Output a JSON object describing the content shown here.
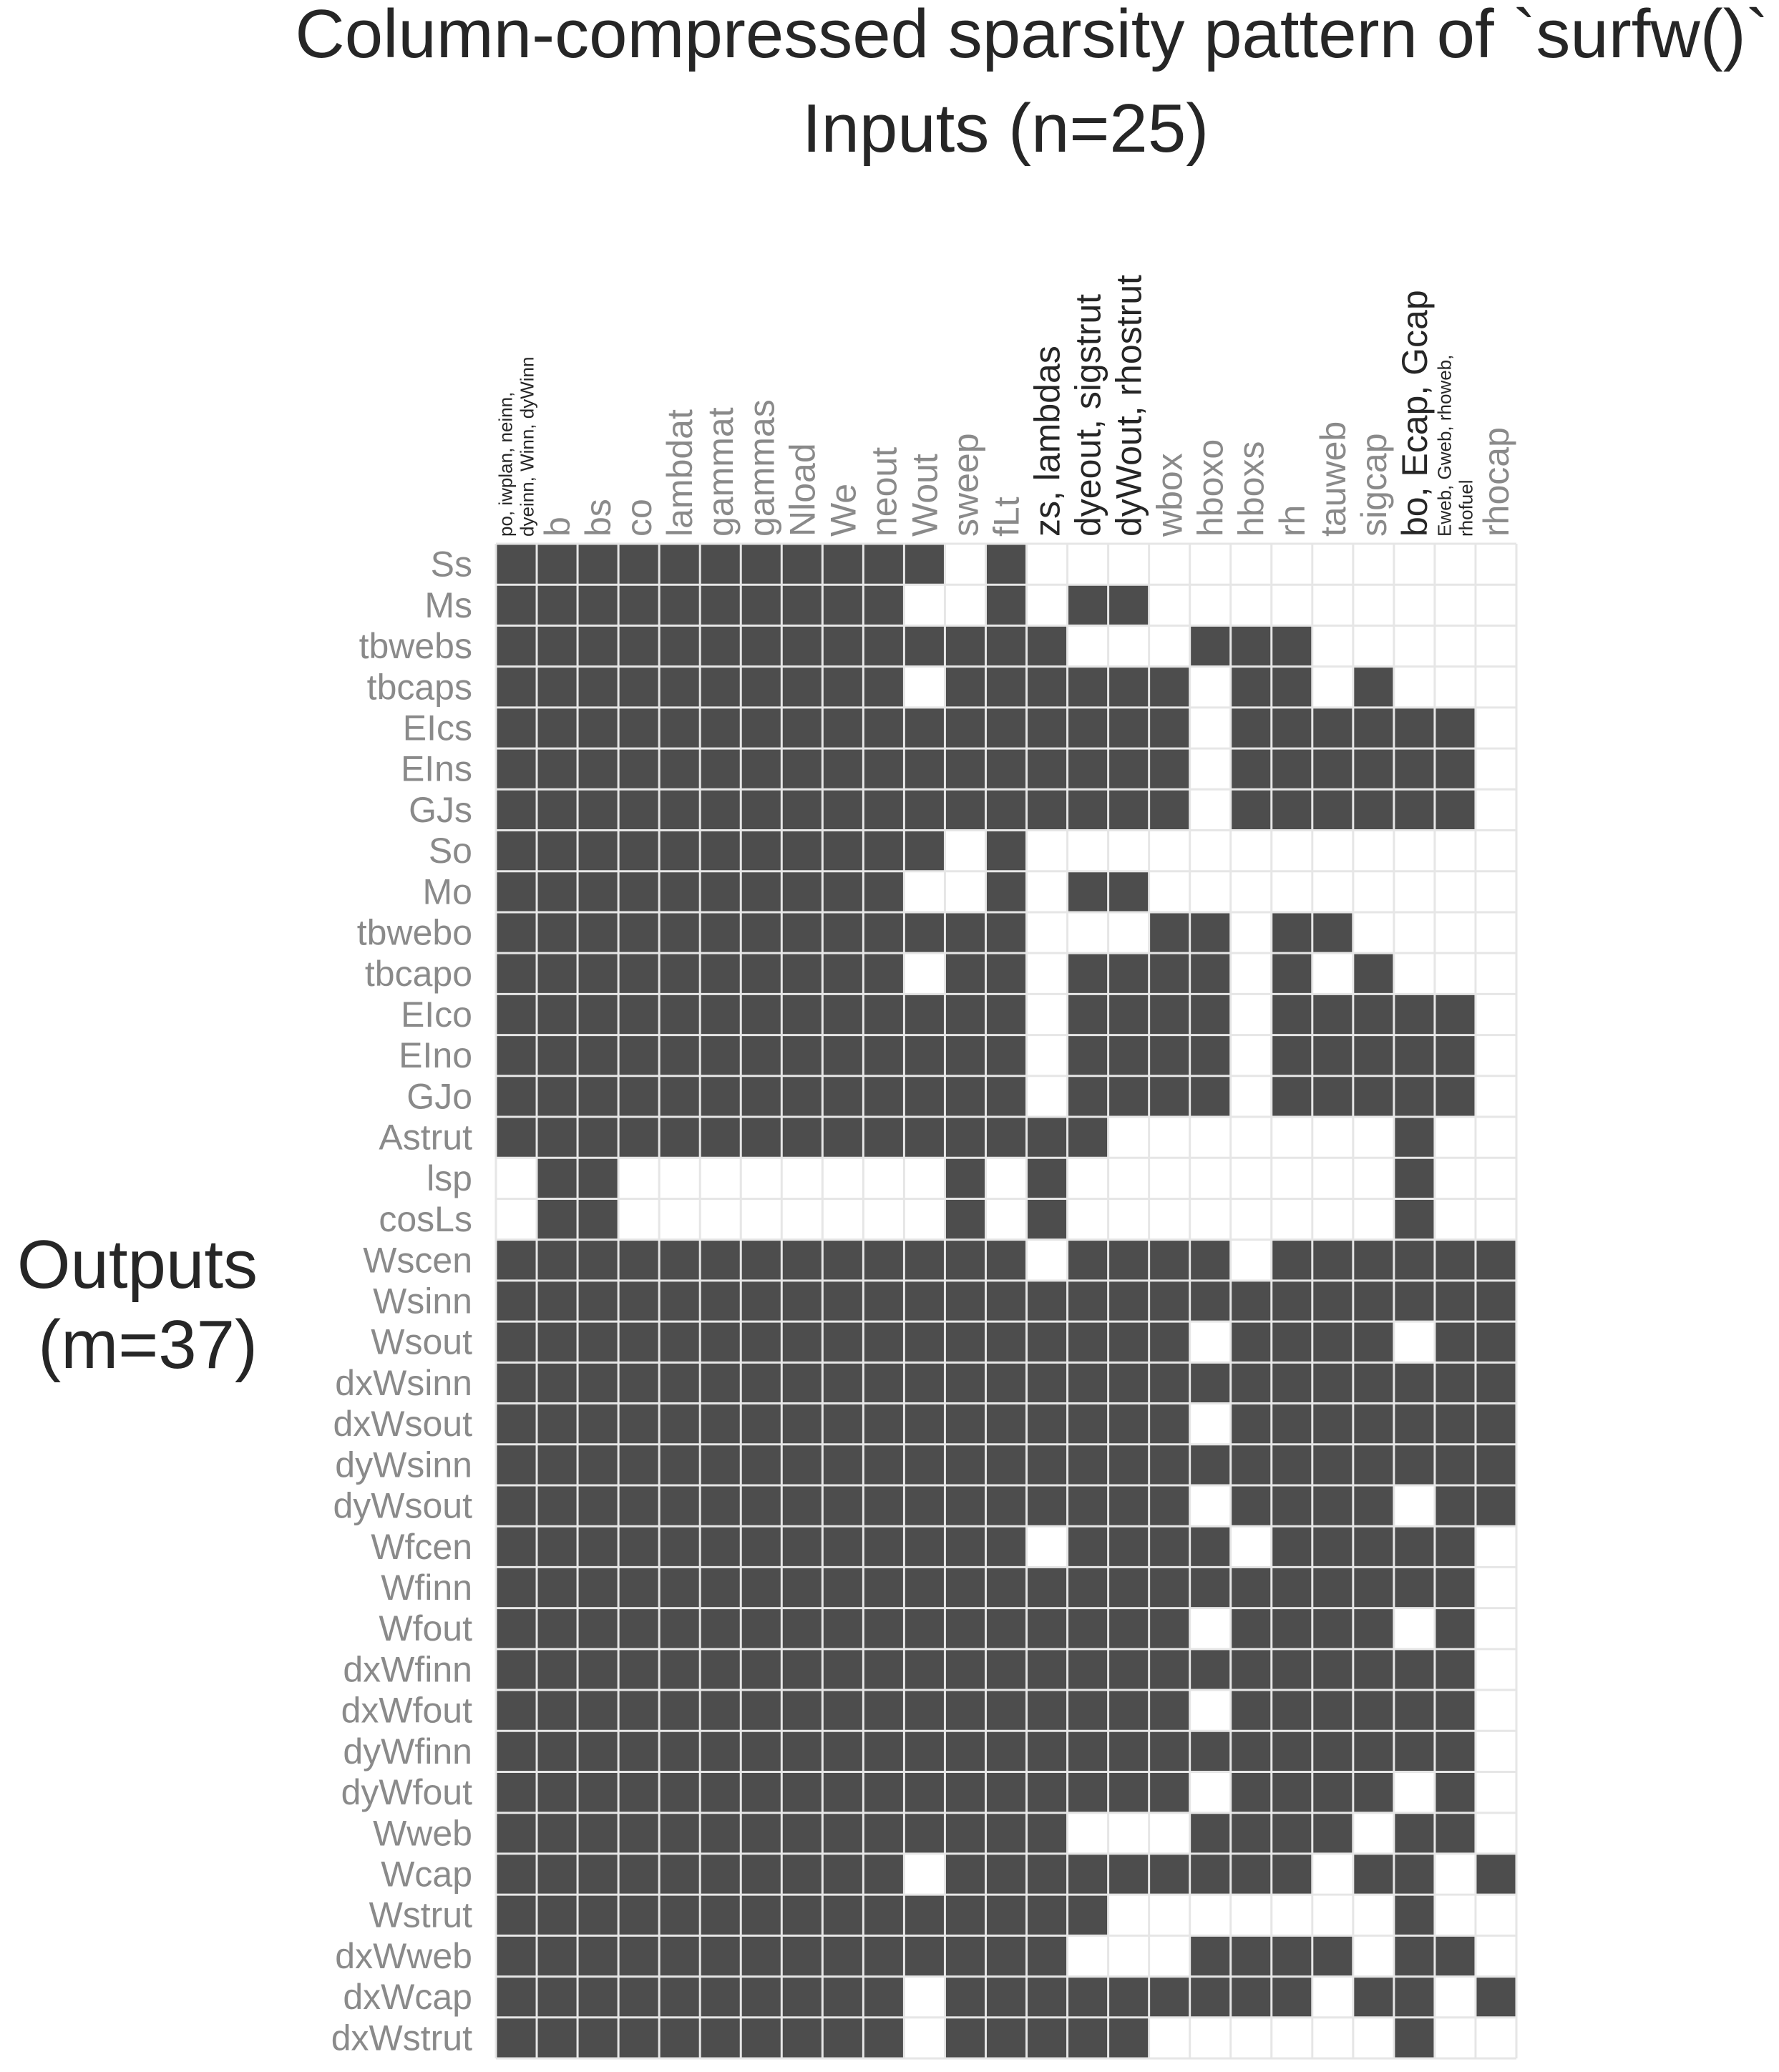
{
  "chart_data": {
    "type": "heatmap",
    "title": "Column-compressed sparsity pattern of `surfw()`",
    "xlabel": "Inputs (n=25)",
    "ylabel": "Outputs\n(m=37)",
    "colors": {
      "filled": "#4d4d4d",
      "empty": "#ffffff",
      "grid": "#e6e6e6",
      "dim_label": "#8a8a8a",
      "dark_label": "#262626"
    },
    "columns": [
      {
        "label": "po, iwplan, neinn,\ndyeinn, Winn, dyWinn",
        "dark": true,
        "small": true
      },
      {
        "label": "b"
      },
      {
        "label": "bs"
      },
      {
        "label": "co"
      },
      {
        "label": "lambdat"
      },
      {
        "label": "gammat"
      },
      {
        "label": "gammas"
      },
      {
        "label": "Nload"
      },
      {
        "label": "We"
      },
      {
        "label": "neout"
      },
      {
        "label": "Wout"
      },
      {
        "label": "sweep"
      },
      {
        "label": "fLt"
      },
      {
        "label": "zs, lambdas",
        "dark": true
      },
      {
        "label": "dyeout, sigstrut",
        "dark": true
      },
      {
        "label": "dyWout, rhostrut",
        "dark": true
      },
      {
        "label": "wbox"
      },
      {
        "label": "hboxo"
      },
      {
        "label": "hboxs"
      },
      {
        "label": "rh"
      },
      {
        "label": "tauweb"
      },
      {
        "label": "sigcap"
      },
      {
        "label": "bo, Ecap, Gcap",
        "dark": true
      },
      {
        "label": "Eweb, Gweb, rhoweb,\nrhofuel",
        "dark": true,
        "small": true
      },
      {
        "label": "rhocap"
      }
    ],
    "rows": [
      "Ss",
      "Ms",
      "tbwebs",
      "tbcaps",
      "EIcs",
      "EIns",
      "GJs",
      "So",
      "Mo",
      "tbwebo",
      "tbcapo",
      "EIco",
      "EIno",
      "GJo",
      "Astrut",
      "lsp",
      "cosLs",
      "Wscen",
      "Wsinn",
      "Wsout",
      "dxWsinn",
      "dxWsout",
      "dyWsinn",
      "dyWsout",
      "Wfcen",
      "Wfinn",
      "Wfout",
      "dxWfinn",
      "dxWfout",
      "dyWfinn",
      "dyWfout",
      "Wweb",
      "Wcap",
      "Wstrut",
      "dxWweb",
      "dxWcap",
      "dxWstrut"
    ],
    "matrix": [
      "1111111111101000000000000",
      "1111111111001011000000000",
      "1111111111111100011100000",
      "1111111111011111101101000",
      "1111111111111111101111110",
      "1111111111111111101111110",
      "1111111111111111101111110",
      "1111111111101000000000000",
      "1111111111001011000000000",
      "1111111111111000110110000",
      "1111111111011011110101000",
      "1111111111111011110111110",
      "1111111111111011110111110",
      "1111111111111011110111110",
      "1111111111111110000000100",
      "0110000000010100000000100",
      "0110000000010100000000100",
      "1111111111111011110111111",
      "1111111111111111111111111",
      "1111111111111111101111011",
      "1111111111111111111111111",
      "1111111111111111101111111",
      "1111111111111111111111111",
      "1111111111111111101111011",
      "1111111111111011110111110",
      "1111111111111111111111110",
      "1111111111111111101111010",
      "1111111111111111111111110",
      "1111111111111111101111110",
      "1111111111111111111111110",
      "1111111111111111101111010",
      "1111111111111100011110110",
      "1111111111011111111101101",
      "1111111111111110000000100",
      "1111111111111100011110110",
      "1111111111011111111101101",
      "1111111111011111000000100"
    ],
    "grid": true,
    "legend": "none"
  }
}
